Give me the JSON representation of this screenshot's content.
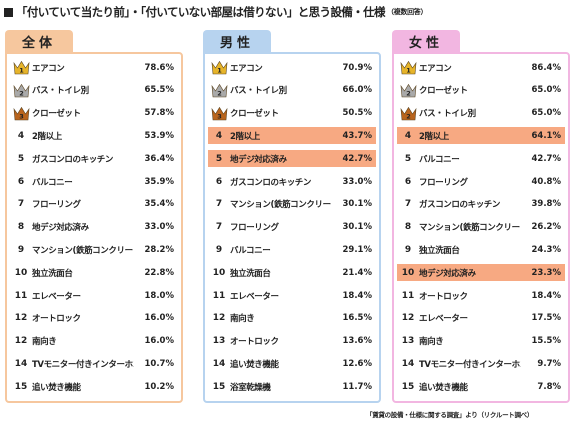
{
  "title": {
    "text": "「付いていて当たり前」・「付いていない部屋は借りない」と思う設備・仕様",
    "note": "（複数回答）"
  },
  "footer": "「賃貸の設備・仕様に関する調査」より（リクルート調べ）",
  "colors": {
    "all_header": "#f6c79e",
    "all_border": "#f6c79e",
    "male_header": "#b7d3ef",
    "male_border": "#b7d3ef",
    "female_header": "#f2b6e1",
    "female_border": "#f2b6e1",
    "highlight": "#f7a982",
    "crown_gold": "#e6b42a",
    "crown_silver": "#a9a9a9",
    "crown_bronze": "#b9641c"
  },
  "panels": [
    {
      "key": "all",
      "label": "全体",
      "items": [
        {
          "rank": "1",
          "label": "エアコン",
          "value": "78.6%",
          "highlight": false
        },
        {
          "rank": "2",
          "label": "バス・トイレ別",
          "value": "65.5%",
          "highlight": false
        },
        {
          "rank": "3",
          "label": "クローゼット",
          "value": "57.8%",
          "highlight": false
        },
        {
          "rank": "4",
          "label": "2階以上",
          "value": "53.9%",
          "highlight": false
        },
        {
          "rank": "5",
          "label": "ガスコンロのキッチン",
          "value": "36.4%",
          "highlight": false
        },
        {
          "rank": "6",
          "label": "バルコニー",
          "value": "35.9%",
          "highlight": false
        },
        {
          "rank": "7",
          "label": "フローリング",
          "value": "35.4%",
          "highlight": false
        },
        {
          "rank": "8",
          "label": "地デジ対応済み",
          "value": "33.0%",
          "highlight": false
        },
        {
          "rank": "9",
          "label": "マンション(鉄筋コンクリート構造)",
          "value": "28.2%",
          "highlight": false
        },
        {
          "rank": "10",
          "label": "独立洗面台",
          "value": "22.8%",
          "highlight": false
        },
        {
          "rank": "11",
          "label": "エレベーター",
          "value": "18.0%",
          "highlight": false
        },
        {
          "rank": "12",
          "label": "オートロック",
          "value": "16.0%",
          "highlight": false
        },
        {
          "rank": "12",
          "label": "南向き",
          "value": "16.0%",
          "highlight": false
        },
        {
          "rank": "14",
          "label": "TVモニター付きインターホン",
          "value": "10.7%",
          "highlight": false
        },
        {
          "rank": "15",
          "label": "追い焚き機能",
          "value": "10.2%",
          "highlight": false
        }
      ]
    },
    {
      "key": "male",
      "label": "男性",
      "items": [
        {
          "rank": "1",
          "label": "エアコン",
          "value": "70.9%",
          "highlight": false
        },
        {
          "rank": "2",
          "label": "バス・トイレ別",
          "value": "66.0%",
          "highlight": false
        },
        {
          "rank": "3",
          "label": "クローゼット",
          "value": "50.5%",
          "highlight": false
        },
        {
          "rank": "4",
          "label": "2階以上",
          "value": "43.7%",
          "highlight": true
        },
        {
          "rank": "5",
          "label": "地デジ対応済み",
          "value": "42.7%",
          "highlight": true
        },
        {
          "rank": "6",
          "label": "ガスコンロのキッチン",
          "value": "33.0%",
          "highlight": false
        },
        {
          "rank": "7",
          "label": "マンション(鉄筋コンクリート構造)",
          "value": "30.1%",
          "highlight": false
        },
        {
          "rank": "7",
          "label": "フローリング",
          "value": "30.1%",
          "highlight": false
        },
        {
          "rank": "9",
          "label": "バルコニー",
          "value": "29.1%",
          "highlight": false
        },
        {
          "rank": "10",
          "label": "独立洗面台",
          "value": "21.4%",
          "highlight": false
        },
        {
          "rank": "11",
          "label": "エレベーター",
          "value": "18.4%",
          "highlight": false
        },
        {
          "rank": "12",
          "label": "南向き",
          "value": "16.5%",
          "highlight": false
        },
        {
          "rank": "13",
          "label": "オートロック",
          "value": "13.6%",
          "highlight": false
        },
        {
          "rank": "14",
          "label": "追い焚き機能",
          "value": "12.6%",
          "highlight": false
        },
        {
          "rank": "15",
          "label": "浴室乾燥機",
          "value": "11.7%",
          "highlight": false
        }
      ]
    },
    {
      "key": "female",
      "label": "女性",
      "items": [
        {
          "rank": "1",
          "label": "エアコン",
          "value": "86.4%",
          "highlight": false
        },
        {
          "rank": "2",
          "label": "クローゼット",
          "value": "65.0%",
          "highlight": false
        },
        {
          "rank": "2",
          "label": "バス・トイレ別",
          "value": "65.0%",
          "highlight": false
        },
        {
          "rank": "4",
          "label": "2階以上",
          "value": "64.1%",
          "highlight": true
        },
        {
          "rank": "5",
          "label": "バルコニー",
          "value": "42.7%",
          "highlight": false
        },
        {
          "rank": "6",
          "label": "フローリング",
          "value": "40.8%",
          "highlight": false
        },
        {
          "rank": "7",
          "label": "ガスコンロのキッチン",
          "value": "39.8%",
          "highlight": false
        },
        {
          "rank": "8",
          "label": "マンション(鉄筋コンクリート構造)",
          "value": "26.2%",
          "highlight": false
        },
        {
          "rank": "9",
          "label": "独立洗面台",
          "value": "24.3%",
          "highlight": false
        },
        {
          "rank": "10",
          "label": "地デジ対応済み",
          "value": "23.3%",
          "highlight": true
        },
        {
          "rank": "11",
          "label": "オートロック",
          "value": "18.4%",
          "highlight": false
        },
        {
          "rank": "12",
          "label": "エレベーター",
          "value": "17.5%",
          "highlight": false
        },
        {
          "rank": "13",
          "label": "南向き",
          "value": "15.5%",
          "highlight": false
        },
        {
          "rank": "14",
          "label": "TVモニター付きインターホン",
          "value": "9.7%",
          "highlight": false
        },
        {
          "rank": "15",
          "label": "追い焚き機能",
          "value": "7.8%",
          "highlight": false
        }
      ]
    }
  ]
}
